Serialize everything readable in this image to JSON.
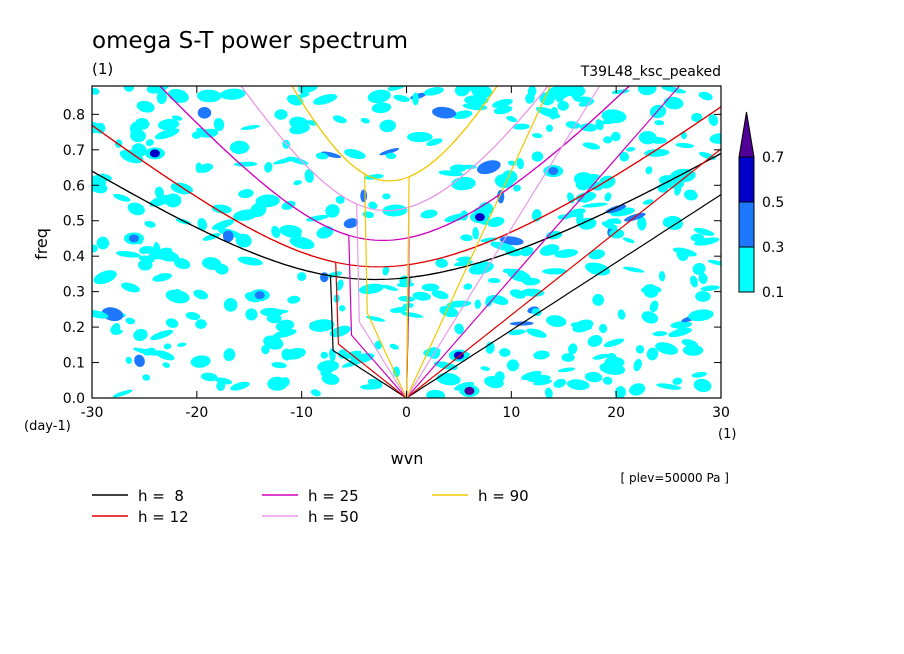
{
  "chart_data": {
    "type": "contour",
    "title": "omega S-T power spectrum",
    "units_label": "(1)",
    "experiment": "T39L48_ksc_peaked",
    "xlabel": "wvn",
    "ylabel": "freq",
    "x_unit": "(1)",
    "y_unit": "(day-1)",
    "xlim": [
      -30,
      30
    ],
    "ylim": [
      0,
      0.88
    ],
    "x_ticks": [
      -30,
      -20,
      -10,
      0,
      10,
      20,
      30
    ],
    "x_tick_labels": [
      "-30",
      "-20",
      "-10",
      "0",
      "10",
      "20",
      "30"
    ],
    "y_ticks": [
      0,
      0.1,
      0.2,
      0.3,
      0.4,
      0.5,
      0.6,
      0.7,
      0.8
    ],
    "y_tick_labels": [
      "0.0",
      "0.1",
      "0.2",
      "0.3",
      "0.4",
      "0.5",
      "0.6",
      "0.7",
      "0.8"
    ],
    "annotation": "[ plev=50000 Pa ]",
    "colorbar": {
      "levels": [
        0.1,
        0.3,
        0.5,
        0.7
      ],
      "level_labels": [
        "0.1",
        "0.3",
        "0.5",
        "0.7"
      ],
      "colors": [
        "#00ffff",
        "#1e78ff",
        "#0000c8",
        "#500096"
      ]
    },
    "dispersion_curves": [
      {
        "label": "h =  8",
        "h": 8,
        "color": "#000000"
      },
      {
        "label": "h = 12",
        "h": 12,
        "color": "#e00000"
      },
      {
        "label": "h = 25",
        "h": 25,
        "color": "#d000c0"
      },
      {
        "label": "h = 50",
        "h": 50,
        "color": "#e89ae8"
      },
      {
        "label": "h = 90",
        "h": 90,
        "color": "#f0c800"
      }
    ],
    "peaks": [
      {
        "x": 6,
        "y": 0.02,
        "level": 0.7
      },
      {
        "x": 5,
        "y": 0.12,
        "level": 0.5
      },
      {
        "x": 7,
        "y": 0.51,
        "level": 0.5
      },
      {
        "x": -24,
        "y": 0.69,
        "level": 0.5
      },
      {
        "x": 14,
        "y": 0.64,
        "level": 0.3
      },
      {
        "x": -26,
        "y": 0.45,
        "level": 0.3
      },
      {
        "x": -14,
        "y": 0.29,
        "level": 0.3
      }
    ]
  }
}
